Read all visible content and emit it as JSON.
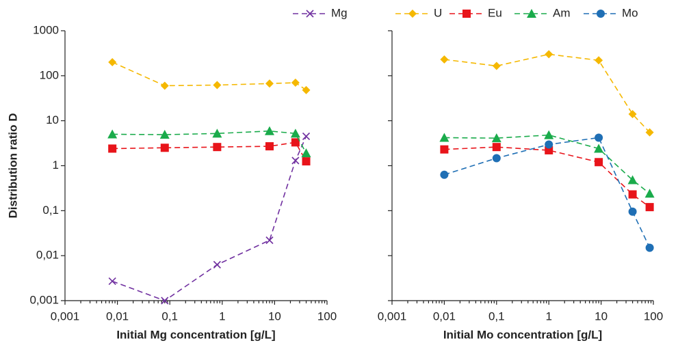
{
  "chart_data": [
    {
      "type": "line",
      "xlabel": "Initial Mg concentration [g/L]",
      "ylabel": "Distribution ratio D",
      "xscale": "log",
      "yscale": "log",
      "xlim": [
        0.001,
        100
      ],
      "xticks": [
        {
          "value": 0.001,
          "label": "0,001"
        },
        {
          "value": 0.01,
          "label": "0,01"
        },
        {
          "value": 0.1,
          "label": "0,1"
        },
        1,
        10,
        100
      ],
      "ylim": [
        0.001,
        1000
      ],
      "yticks": [
        {
          "value": 0.001,
          "label": "0,001"
        },
        {
          "value": 0.01,
          "label": "0,01"
        },
        {
          "value": 0.1,
          "label": "0,1"
        },
        1,
        10,
        100,
        1000
      ],
      "x": [
        0.008,
        0.08,
        0.8,
        8,
        25,
        40
      ],
      "series": [
        {
          "name": "Mg",
          "color": "#7030a0",
          "marker": "x",
          "values": [
            0.0027,
            0.001,
            0.0063,
            0.022,
            1.3,
            4.5
          ]
        },
        {
          "name": "U",
          "color": "#f5b800",
          "marker": "diamond",
          "values": [
            200,
            60,
            62,
            67,
            70,
            48
          ]
        },
        {
          "name": "Eu",
          "color": "#e8141a",
          "marker": "square",
          "values": [
            2.4,
            2.5,
            2.6,
            2.7,
            3.3,
            1.25
          ]
        },
        {
          "name": "Am",
          "color": "#1aab4b",
          "marker": "triangle",
          "values": [
            5,
            4.9,
            5.2,
            5.9,
            5.2,
            1.9
          ]
        }
      ]
    },
    {
      "type": "line",
      "xlabel": "Initial Mo concentration [g/L]",
      "xscale": "log",
      "yscale": "log",
      "xlim": [
        0.001,
        100
      ],
      "xticks": [
        {
          "value": 0.001,
          "label": "0,001"
        },
        {
          "value": 0.01,
          "label": "0,01"
        },
        {
          "value": 0.1,
          "label": "0,1"
        },
        1,
        10,
        100
      ],
      "ylim": [
        0.001,
        1000
      ],
      "yticks": [
        0.001,
        0.01,
        0.1,
        1,
        10,
        100,
        1000
      ],
      "ytick_labels": false,
      "x": [
        0.01,
        0.1,
        1,
        9,
        40,
        85
      ],
      "series": [
        {
          "name": "U",
          "color": "#f5b800",
          "marker": "diamond",
          "values": [
            230,
            165,
            300,
            220,
            14,
            5.5
          ]
        },
        {
          "name": "Eu",
          "color": "#e8141a",
          "marker": "square",
          "values": [
            2.3,
            2.6,
            2.2,
            1.2,
            0.23,
            0.12
          ]
        },
        {
          "name": "Am",
          "color": "#1aab4b",
          "marker": "triangle",
          "values": [
            4.2,
            4.1,
            4.8,
            2.4,
            0.48,
            0.24
          ]
        },
        {
          "name": "Mo",
          "color": "#1f6fb5",
          "marker": "circle",
          "values": [
            0.63,
            1.47,
            2.96,
            4.2,
            0.095,
            0.015
          ]
        }
      ]
    }
  ]
}
